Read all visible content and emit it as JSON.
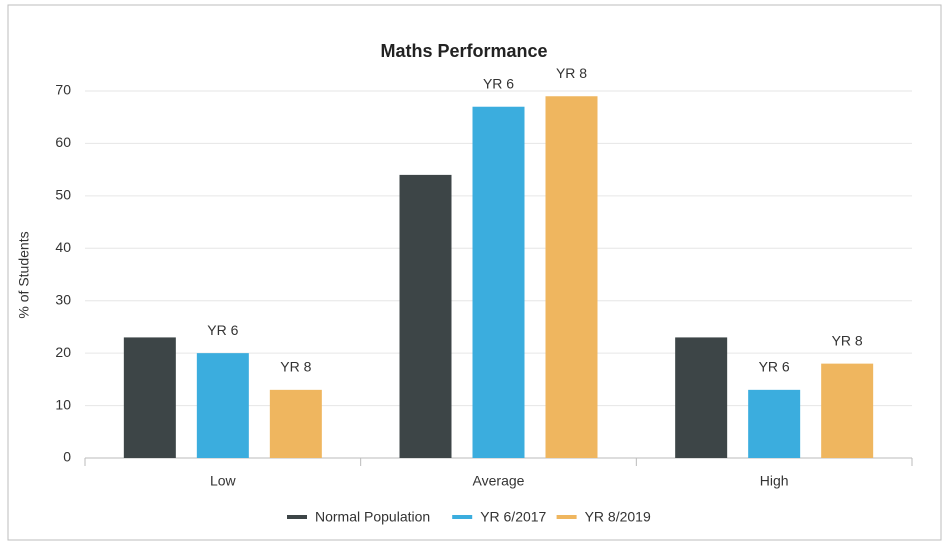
{
  "chart_data": {
    "type": "bar",
    "title": "Maths Performance",
    "ylabel": "% of Students",
    "categories": [
      "Low",
      "Average",
      "High"
    ],
    "series": [
      {
        "name": "Normal Population",
        "color": "#3d4547",
        "values": [
          23,
          54,
          23
        ]
      },
      {
        "name": "YR 6/2017",
        "color": "#3badde",
        "values": [
          20,
          67,
          13
        ],
        "data_label": "YR 6"
      },
      {
        "name": "YR 8/2019",
        "color": "#efb65f",
        "values": [
          13,
          69,
          18
        ],
        "data_label": "YR 8"
      }
    ],
    "ylim": [
      0,
      70
    ],
    "yticks": [
      0,
      10,
      20,
      30,
      40,
      50,
      60,
      70
    ],
    "grid": true,
    "legend": "bottom"
  }
}
